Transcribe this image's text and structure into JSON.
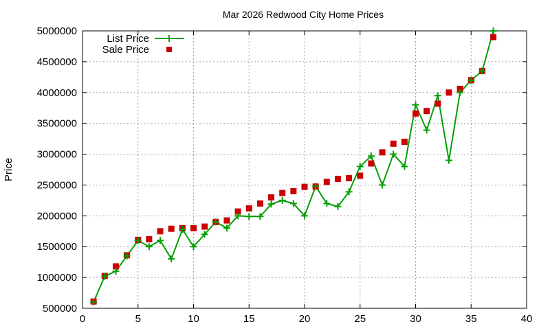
{
  "chart_data": {
    "type": "line",
    "title": "Mar 2026 Redwood City Home Prices",
    "xlabel": "",
    "ylabel": "Price",
    "xlim": [
      0,
      40
    ],
    "ylim": [
      500000,
      5000000
    ],
    "xticks": [
      0,
      5,
      10,
      15,
      20,
      25,
      30,
      35,
      40
    ],
    "yticks": [
      500000,
      1000000,
      1500000,
      2000000,
      2500000,
      3000000,
      3500000,
      4000000,
      4500000,
      5000000
    ],
    "grid": true,
    "legend_position": "top-left",
    "x": [
      1,
      2,
      3,
      4,
      5,
      6,
      7,
      8,
      9,
      10,
      11,
      12,
      13,
      14,
      15,
      16,
      17,
      18,
      19,
      20,
      21,
      22,
      23,
      24,
      25,
      26,
      27,
      28,
      29,
      30,
      31,
      32,
      33,
      34,
      35,
      36,
      37
    ],
    "series": [
      {
        "name": "List Price",
        "style": "linespoints",
        "color": "#00a000",
        "values": [
          600000,
          1020000,
          1100000,
          1350000,
          1600000,
          1500000,
          1600000,
          1300000,
          1780000,
          1500000,
          1700000,
          1900000,
          1800000,
          2000000,
          1990000,
          1990000,
          2190000,
          2250000,
          2200000,
          2000000,
          2480000,
          2200000,
          2150000,
          2390000,
          2800000,
          2970000,
          2500000,
          3000000,
          2800000,
          3800000,
          3390000,
          3950000,
          2900000,
          4000000,
          4200000,
          4350000,
          5000000
        ]
      },
      {
        "name": "Sale Price",
        "style": "points",
        "color": "#cc0000",
        "values": [
          610000,
          1025000,
          1180000,
          1360000,
          1610000,
          1620000,
          1750000,
          1790000,
          1800000,
          1800000,
          1825000,
          1900000,
          1925000,
          2070000,
          2120000,
          2200000,
          2300000,
          2370000,
          2400000,
          2470000,
          2475000,
          2550000,
          2600000,
          2610000,
          2650000,
          2850000,
          3030000,
          3170000,
          3200000,
          3660000,
          3700000,
          3820000,
          4000000,
          4060000,
          4200000,
          4350000,
          4900000
        ]
      }
    ]
  }
}
